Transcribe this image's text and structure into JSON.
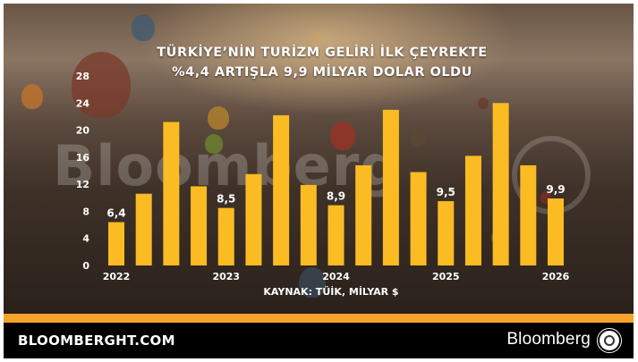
{
  "title_line1": "TÜRKİYE’NİN TURİZM GELİRİ İLK ÇEYREKTE",
  "title_line2": "%4,4 ARTIŞLA 9,9 MİLYAR DOLAR OLDU",
  "source": "KAYNAK: TÜİK, MİLYAR $",
  "footer": {
    "site": "BLOOMBERGHT.COM",
    "brand": "Bloomberg"
  },
  "watermark": "Bloomberg",
  "colors": {
    "bar": "#fbbb22",
    "accent": "#f6a22b",
    "footer_bg": "#000000",
    "text": "#ffffff"
  },
  "chart_data": {
    "type": "bar",
    "title": "TÜRKİYE’NİN TURİZM GELİRİ İLK ÇEYREKTE %4,4 ARTIŞLA 9,9 MİLYAR DOLAR OLDU",
    "xlabel": "",
    "ylabel": "",
    "ylim": [
      0,
      28
    ],
    "yticks": [
      0,
      4,
      8,
      12,
      16,
      20,
      24,
      28
    ],
    "x_tick_labels": [
      "2022",
      "2023",
      "2024",
      "2025",
      "2026"
    ],
    "x_tick_bar_index": [
      0,
      4,
      8,
      12,
      16
    ],
    "values": [
      6.4,
      10.6,
      21.2,
      11.7,
      8.5,
      13.5,
      22.2,
      11.9,
      8.9,
      14.8,
      23.0,
      13.8,
      9.5,
      16.2,
      24.0,
      14.8,
      9.9
    ],
    "data_labels": [
      {
        "bar_index": 0,
        "text": "6,4"
      },
      {
        "bar_index": 4,
        "text": "8,5"
      },
      {
        "bar_index": 8,
        "text": "8,9"
      },
      {
        "bar_index": 12,
        "text": "9,5"
      },
      {
        "bar_index": 16,
        "text": "9,9"
      }
    ],
    "grid": false,
    "legend": "none"
  }
}
